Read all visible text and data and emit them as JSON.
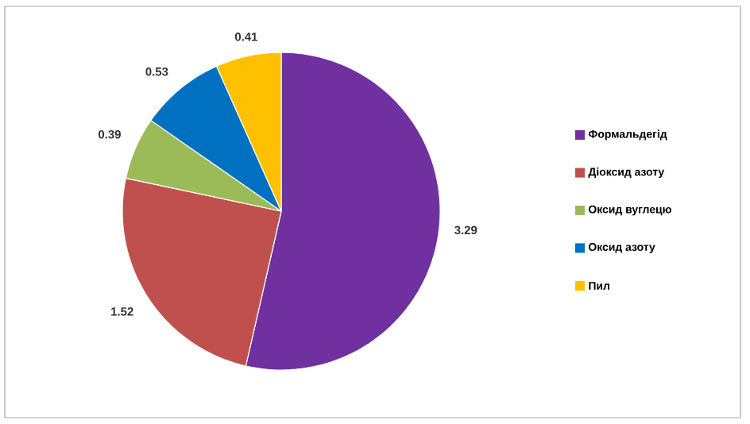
{
  "chart_data": {
    "type": "pie",
    "categories": [
      "Формальдегід",
      "Діоксид азоту",
      "Оксид вуглецю",
      "Оксид азоту",
      "Пил"
    ],
    "values": [
      3.29,
      1.52,
      0.39,
      0.53,
      0.41
    ],
    "colors": [
      "#7030a0",
      "#c0504d",
      "#9bbb59",
      "#0070c0",
      "#ffc000"
    ],
    "data_labels": true,
    "legend": "right"
  }
}
